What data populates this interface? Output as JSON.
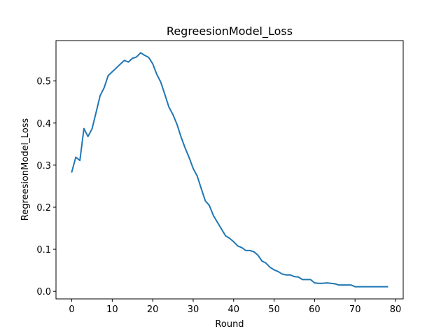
{
  "chart_data": {
    "type": "line",
    "title": "RegreesionModel_Loss",
    "xlabel": "Round",
    "ylabel": "RegreesionModel_Loss",
    "xlim": [
      -3.9,
      81.9
    ],
    "ylim": [
      -0.018,
      0.596
    ],
    "xticks": [
      0,
      10,
      20,
      30,
      40,
      50,
      60,
      70,
      80
    ],
    "yticks": [
      0.0,
      0.1,
      0.2,
      0.3,
      0.4,
      0.5
    ],
    "xtick_labels": [
      "0",
      "10",
      "20",
      "30",
      "40",
      "50",
      "60",
      "70",
      "80"
    ],
    "ytick_labels": [
      "0.0",
      "0.1",
      "0.2",
      "0.3",
      "0.4",
      "0.5"
    ],
    "grid": false,
    "series": [
      {
        "color": "#1f77b4",
        "x": [
          0,
          1,
          2,
          3,
          4,
          5,
          6,
          7,
          8,
          9,
          10,
          11,
          12,
          13,
          14,
          15,
          16,
          17,
          18,
          19,
          20,
          21,
          22,
          23,
          24,
          25,
          26,
          27,
          28,
          29,
          30,
          31,
          32,
          33,
          34,
          35,
          36,
          37,
          38,
          39,
          40,
          41,
          42,
          43,
          44,
          45,
          46,
          47,
          48,
          49,
          50,
          51,
          52,
          53,
          54,
          55,
          56,
          57,
          58,
          59,
          60,
          61,
          62,
          63,
          64,
          65,
          66,
          67,
          68,
          69,
          70,
          71,
          72,
          73,
          74,
          75,
          76,
          77,
          78
        ],
        "y": [
          0.284,
          0.319,
          0.311,
          0.387,
          0.368,
          0.386,
          0.425,
          0.465,
          0.484,
          0.513,
          0.522,
          0.531,
          0.54,
          0.549,
          0.545,
          0.554,
          0.557,
          0.567,
          0.561,
          0.556,
          0.541,
          0.516,
          0.497,
          0.468,
          0.438,
          0.42,
          0.397,
          0.367,
          0.341,
          0.318,
          0.292,
          0.274,
          0.244,
          0.215,
          0.204,
          0.18,
          0.164,
          0.148,
          0.132,
          0.126,
          0.118,
          0.108,
          0.104,
          0.097,
          0.097,
          0.094,
          0.086,
          0.072,
          0.067,
          0.057,
          0.051,
          0.047,
          0.041,
          0.039,
          0.039,
          0.035,
          0.034,
          0.028,
          0.028,
          0.028,
          0.02,
          0.019,
          0.019,
          0.02,
          0.019,
          0.018,
          0.015,
          0.015,
          0.015,
          0.015,
          0.011,
          0.011,
          0.011,
          0.011,
          0.011,
          0.011,
          0.011,
          0.011,
          0.011
        ]
      }
    ]
  }
}
